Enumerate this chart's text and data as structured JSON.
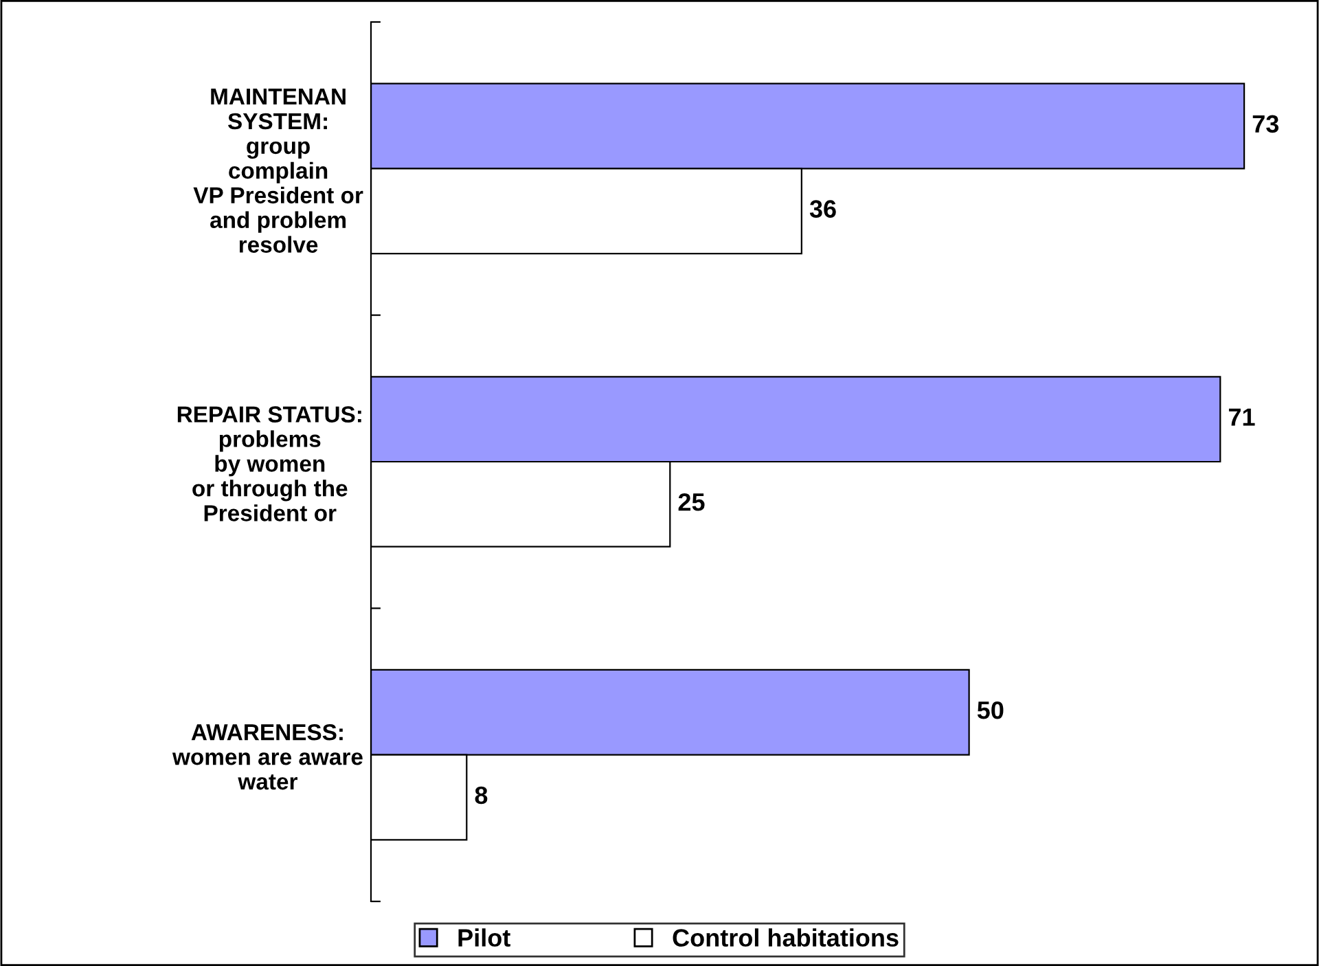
{
  "chart_data": {
    "type": "bar",
    "orientation": "horizontal",
    "categories": [
      "MAINTENAN\nSYSTEM:\ngroup\ncomplain\nVP President or\nand problem\nresolve",
      "REPAIR STATUS:\nproblems\nby women\nor through the\nPresident or",
      "AWARENESS:\nwomen are aware\nwater"
    ],
    "series": [
      {
        "name": "Pilot",
        "color": "#9999ff",
        "values": [
          73,
          71,
          50
        ]
      },
      {
        "name": "Control habitations",
        "color": "#ffffff",
        "values": [
          36,
          25,
          8
        ]
      }
    ],
    "data_labels": true,
    "legend": "bottom",
    "grid": false
  }
}
